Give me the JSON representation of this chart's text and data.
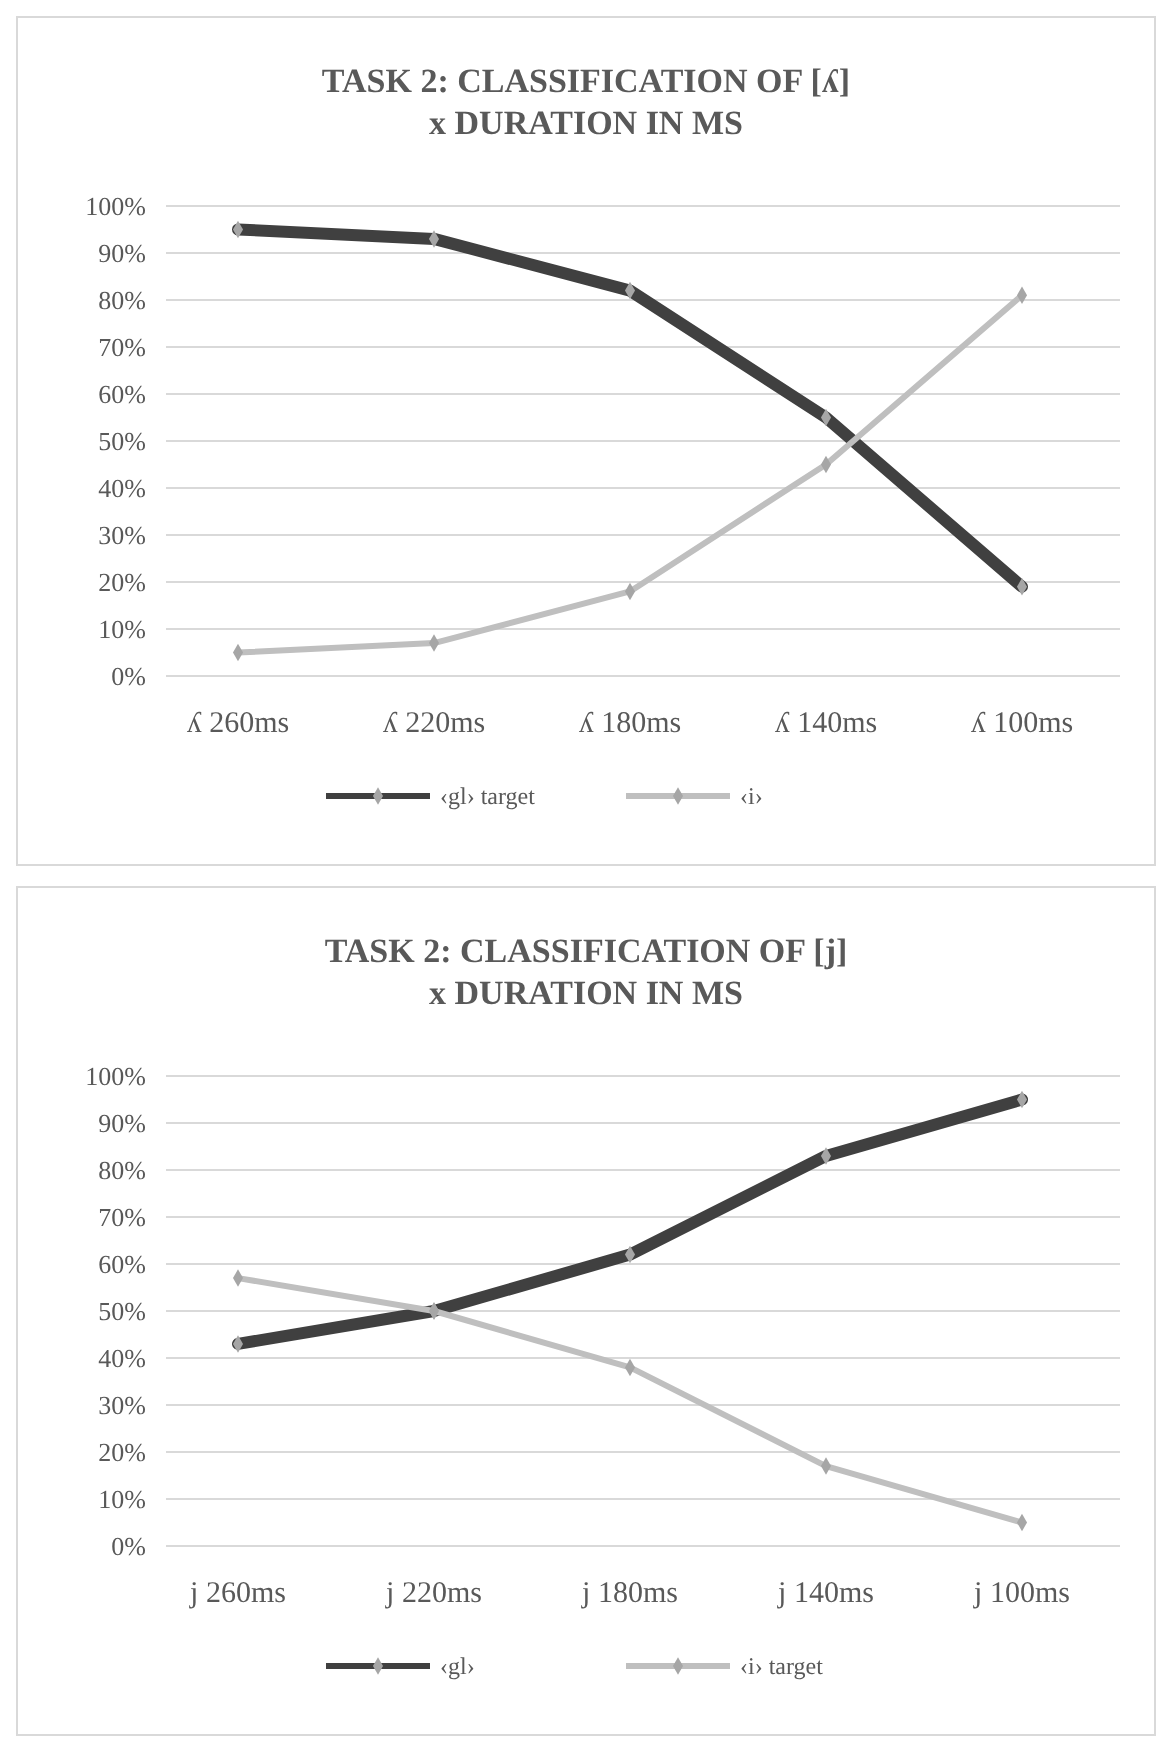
{
  "chart_data": [
    {
      "type": "line",
      "title": "TASK 2: CLASSIFICATION OF [ʎ]",
      "subtitle": "x  DURATION IN MS",
      "categories": [
        "ʎ 260ms",
        "ʎ 220ms",
        "ʎ 180ms",
        "ʎ 140ms",
        "ʎ 100ms"
      ],
      "series": [
        {
          "name": "‹gl› target",
          "color": "#404040",
          "values": [
            95,
            93,
            82,
            55,
            19
          ]
        },
        {
          "name": "‹i›",
          "color": "#bfbfbf",
          "values": [
            5,
            7,
            18,
            45,
            81
          ]
        }
      ],
      "ylim": [
        0,
        100
      ],
      "yticks": [
        {
          "value": 0,
          "label": "0%"
        },
        {
          "value": 10,
          "label": "10%"
        },
        {
          "value": 20,
          "label": "20%"
        },
        {
          "value": 30,
          "label": "30%"
        },
        {
          "value": 40,
          "label": "40%"
        },
        {
          "value": 50,
          "label": "50%"
        },
        {
          "value": 60,
          "label": "60%"
        },
        {
          "value": 70,
          "label": "70%"
        },
        {
          "value": 80,
          "label": "80%"
        },
        {
          "value": 90,
          "label": "90%"
        },
        {
          "value": 100,
          "label": "100%"
        }
      ],
      "grid": "y",
      "legend": "bottom",
      "marker": "diamond",
      "line_style": "solid"
    },
    {
      "type": "line",
      "title": "TASK 2: CLASSIFICATION OF [j]",
      "subtitle": "x  DURATION IN MS",
      "categories": [
        "j 260ms",
        "j 220ms",
        "j 180ms",
        "j 140ms",
        "j 100ms"
      ],
      "series": [
        {
          "name": "‹gl›",
          "color": "#404040",
          "values": [
            43,
            50,
            62,
            83,
            95
          ]
        },
        {
          "name": "‹i› target",
          "color": "#bfbfbf",
          "values": [
            57,
            50,
            38,
            17,
            5
          ]
        }
      ],
      "ylim": [
        0,
        100
      ],
      "yticks": [
        {
          "value": 0,
          "label": "0%"
        },
        {
          "value": 10,
          "label": "10%"
        },
        {
          "value": 20,
          "label": "20%"
        },
        {
          "value": 30,
          "label": "30%"
        },
        {
          "value": 40,
          "label": "40%"
        },
        {
          "value": 50,
          "label": "50%"
        },
        {
          "value": 60,
          "label": "60%"
        },
        {
          "value": 70,
          "label": "70%"
        },
        {
          "value": 80,
          "label": "80%"
        },
        {
          "value": 90,
          "label": "90%"
        },
        {
          "value": 100,
          "label": "100%"
        }
      ],
      "grid": "y",
      "legend": "bottom",
      "marker": "diamond",
      "line_style": "solid"
    }
  ]
}
